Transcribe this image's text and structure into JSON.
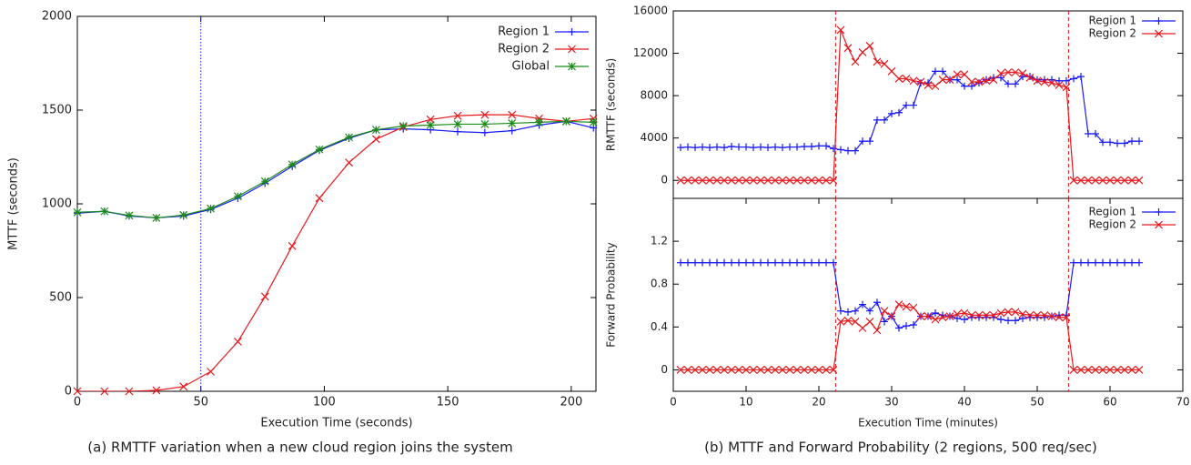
{
  "chart_data": [
    {
      "type": "line",
      "xlabel": "Execution Time (seconds)",
      "ylabel": "MTTF (seconds)",
      "caption": "(a) RMTTF variation when a new cloud region joins the system",
      "x": [
        0,
        11,
        21,
        32,
        43,
        54,
        65,
        76,
        87,
        98,
        110,
        121,
        132,
        143,
        154,
        165,
        176,
        187,
        198,
        209
      ],
      "series": [
        {
          "name": "Region 1",
          "color": "#1a1aff",
          "marker": "plus",
          "values": [
            950,
            960,
            935,
            925,
            935,
            970,
            1030,
            1110,
            1200,
            1285,
            1350,
            1395,
            1400,
            1395,
            1385,
            1380,
            1390,
            1420,
            1440,
            1405
          ]
        },
        {
          "name": "Region 2",
          "color": "#e8191d",
          "marker": "cross",
          "values": [
            0,
            0,
            0,
            5,
            25,
            105,
            265,
            505,
            775,
            1030,
            1220,
            1345,
            1410,
            1450,
            1470,
            1475,
            1475,
            1455,
            1440,
            1455
          ]
        },
        {
          "name": "Global",
          "color": "#1a8a1a",
          "marker": "star",
          "values": [
            955,
            960,
            938,
            925,
            940,
            975,
            1040,
            1120,
            1210,
            1290,
            1355,
            1395,
            1415,
            1420,
            1425,
            1425,
            1430,
            1435,
            1440,
            1435
          ]
        }
      ],
      "xlim": [
        0,
        210
      ],
      "xticks": [
        0,
        50,
        100,
        150,
        200
      ],
      "ylim": [
        0,
        2000
      ],
      "yticks": [
        0,
        500,
        1000,
        1500,
        2000
      ],
      "vlines": [
        50
      ],
      "vline_color": "#1a1aff",
      "vline_style": "dotted",
      "legend": "upper right"
    },
    {
      "type": "line",
      "ylabel": "RMTTF (seconds)",
      "x": [
        1,
        2,
        3,
        4,
        5,
        6,
        7,
        8,
        9,
        10,
        11,
        12,
        13,
        14,
        15,
        16,
        17,
        18,
        19,
        20,
        21,
        22,
        23,
        24,
        25,
        26,
        27,
        28,
        29,
        30,
        31,
        32,
        33,
        34,
        35,
        36,
        37,
        38,
        39,
        40,
        41,
        42,
        43,
        44,
        45,
        46,
        47,
        48,
        49,
        50,
        51,
        52,
        53,
        54,
        55,
        56,
        57,
        58,
        59,
        60,
        61,
        62,
        63,
        64
      ],
      "series": [
        {
          "name": "Region 1",
          "color": "#1a1aff",
          "marker": "plus",
          "values": [
            3100,
            3150,
            3100,
            3150,
            3100,
            3150,
            3100,
            3200,
            3150,
            3150,
            3100,
            3150,
            3100,
            3150,
            3100,
            3150,
            3150,
            3200,
            3200,
            3250,
            3250,
            3000,
            2900,
            2800,
            2800,
            3700,
            3700,
            5700,
            5700,
            6300,
            6400,
            7100,
            7100,
            9200,
            9200,
            10300,
            10300,
            9500,
            9500,
            8900,
            8900,
            9200,
            9500,
            9700,
            9700,
            9100,
            9100,
            9800,
            9800,
            9500,
            9500,
            9500,
            9400,
            9400,
            9600,
            9800,
            4400,
            4400,
            3600,
            3600,
            3500,
            3500,
            3700,
            3700
          ]
        },
        {
          "name": "Region 2",
          "color": "#e8191d",
          "marker": "cross",
          "values": [
            0,
            0,
            0,
            0,
            0,
            0,
            0,
            0,
            0,
            0,
            0,
            0,
            0,
            0,
            0,
            0,
            0,
            0,
            0,
            0,
            0,
            0,
            14200,
            12500,
            11200,
            12100,
            12700,
            11200,
            11000,
            10300,
            9600,
            9600,
            9400,
            9300,
            9000,
            8900,
            9500,
            9500,
            10000,
            10000,
            9300,
            9300,
            9400,
            9500,
            10100,
            10200,
            10200,
            10100,
            9700,
            9400,
            9300,
            9200,
            9000,
            8800,
            0,
            0,
            0,
            0,
            0,
            0,
            0,
            0,
            0,
            0
          ]
        }
      ],
      "xlim": [
        0,
        70
      ],
      "ylim": [
        -1700,
        16000
      ],
      "yticks": [
        0,
        4000,
        8000,
        12000,
        16000
      ],
      "vlines": [
        22.3,
        54.3
      ],
      "vline_color": "#e8191d",
      "vline_style": "dashed",
      "legend": "upper right"
    },
    {
      "type": "line",
      "xlabel": "Execution Time (minutes)",
      "ylabel": "Forward Probability",
      "caption": "(b) MTTF and Forward Probability (2 regions, 500 req/sec)",
      "x": [
        1,
        2,
        3,
        4,
        5,
        6,
        7,
        8,
        9,
        10,
        11,
        12,
        13,
        14,
        15,
        16,
        17,
        18,
        19,
        20,
        21,
        22,
        23,
        24,
        25,
        26,
        27,
        28,
        29,
        30,
        31,
        32,
        33,
        34,
        35,
        36,
        37,
        38,
        39,
        40,
        41,
        42,
        43,
        44,
        45,
        46,
        47,
        48,
        49,
        50,
        51,
        52,
        53,
        54,
        55,
        56,
        57,
        58,
        59,
        60,
        61,
        62,
        63,
        64
      ],
      "series": [
        {
          "name": "Region 1",
          "color": "#1a1aff",
          "marker": "plus",
          "values": [
            1,
            1,
            1,
            1,
            1,
            1,
            1,
            1,
            1,
            1,
            1,
            1,
            1,
            1,
            1,
            1,
            1,
            1,
            1,
            1,
            1,
            1,
            0.55,
            0.54,
            0.55,
            0.61,
            0.55,
            0.63,
            0.45,
            0.5,
            0.39,
            0.41,
            0.42,
            0.5,
            0.5,
            0.53,
            0.51,
            0.5,
            0.48,
            0.47,
            0.49,
            0.49,
            0.49,
            0.49,
            0.47,
            0.46,
            0.46,
            0.48,
            0.49,
            0.49,
            0.49,
            0.5,
            0.51,
            0.51,
            1,
            1,
            1,
            1,
            1,
            1,
            1,
            1,
            1,
            1
          ]
        },
        {
          "name": "Region 2",
          "color": "#e8191d",
          "marker": "cross",
          "values": [
            0,
            0,
            0,
            0,
            0,
            0,
            0,
            0,
            0,
            0,
            0,
            0,
            0,
            0,
            0,
            0,
            0,
            0,
            0,
            0,
            0,
            0,
            0.45,
            0.46,
            0.45,
            0.39,
            0.45,
            0.37,
            0.55,
            0.5,
            0.61,
            0.59,
            0.58,
            0.5,
            0.5,
            0.47,
            0.49,
            0.5,
            0.52,
            0.53,
            0.51,
            0.51,
            0.51,
            0.51,
            0.53,
            0.54,
            0.54,
            0.52,
            0.51,
            0.51,
            0.51,
            0.5,
            0.49,
            0.49,
            0,
            0,
            0,
            0,
            0,
            0,
            0,
            0,
            0,
            0
          ]
        }
      ],
      "xlim": [
        0,
        70
      ],
      "xticks": [
        0,
        10,
        20,
        30,
        40,
        50,
        60,
        70
      ],
      "ylim": [
        -0.2,
        1.6
      ],
      "yticks": [
        0,
        0.4,
        0.8,
        1.2
      ],
      "vlines": [
        22.3,
        54.3
      ],
      "vline_color": "#e8191d",
      "vline_style": "dashed",
      "legend": "upper right"
    }
  ]
}
